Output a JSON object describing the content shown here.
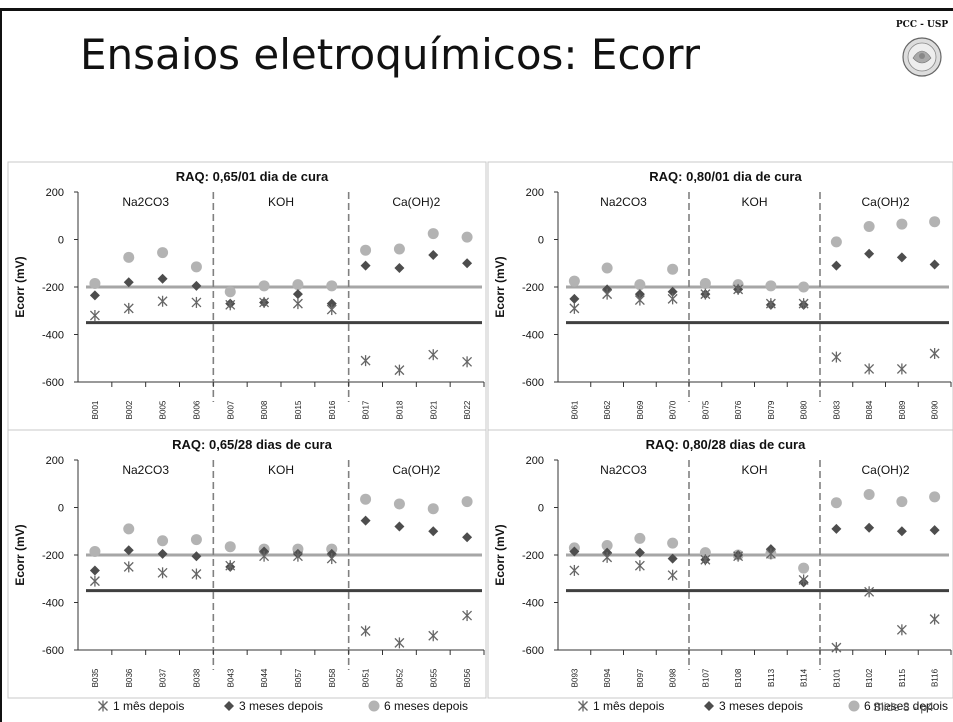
{
  "slide": {
    "title": "Ensaios eletroquímicos: Ecorr",
    "logo_text": "PCC - USP",
    "slide_number": "Slide 8 - p4"
  },
  "colors": {
    "series_1": "#555555",
    "series_2": "#555555",
    "series_3": "#b3b3b3",
    "line_minus200": "#a6a6a6",
    "line_minus350": "#404040",
    "divider": "#808080"
  },
  "chart_data": [
    {
      "type": "scatter",
      "title": "RAQ: 0,65/01 dia de cura",
      "ylabel": "Ecorr (mV)",
      "ylim": [
        -600,
        200
      ],
      "yticks": [
        200,
        0,
        -200,
        -400,
        -600
      ],
      "groups": [
        "Na2CO3",
        "KOH",
        "Ca(OH)2"
      ],
      "categories": [
        "B001",
        "B002",
        "B005",
        "B006",
        "B007",
        "B008",
        "B015",
        "B016",
        "B017",
        "B018",
        "B021",
        "B022"
      ],
      "reference_lines": [
        -200,
        -350
      ],
      "series": [
        {
          "name": "1 mês depois",
          "marker": "asterisk",
          "values": [
            -320,
            -290,
            -260,
            -265,
            -275,
            -265,
            -270,
            -295,
            -510,
            -550,
            -485,
            -515
          ]
        },
        {
          "name": "3 meses depois",
          "marker": "diamond",
          "values": [
            -235,
            -180,
            -165,
            -195,
            -270,
            -265,
            -230,
            -270,
            -110,
            -120,
            -65,
            -100
          ]
        },
        {
          "name": "6 meses depois",
          "marker": "circle",
          "values": [
            -185,
            -75,
            -55,
            -115,
            -220,
            -195,
            -190,
            -195,
            -45,
            -40,
            25,
            10
          ]
        }
      ]
    },
    {
      "type": "scatter",
      "title": "RAQ: 0,80/01 dia de cura",
      "ylabel": "Ecorr (mV)",
      "ylim": [
        -600,
        200
      ],
      "yticks": [
        200,
        0,
        -200,
        -400,
        -600
      ],
      "groups": [
        "Na2CO3",
        "KOH",
        "Ca(OH)2"
      ],
      "categories": [
        "B061",
        "B062",
        "B069",
        "B070",
        "B075",
        "B076",
        "B079",
        "B080",
        "B083",
        "B084",
        "B089",
        "B090"
      ],
      "reference_lines": [
        -200,
        -350
      ],
      "series": [
        {
          "name": "1 mês depois",
          "marker": "asterisk",
          "values": [
            -290,
            -230,
            -255,
            -250,
            -230,
            -210,
            -270,
            -270,
            -495,
            -545,
            -545,
            -480
          ]
        },
        {
          "name": "3 meses depois",
          "marker": "diamond",
          "values": [
            -250,
            -210,
            -230,
            -220,
            -230,
            -210,
            -275,
            -275,
            -110,
            -60,
            -75,
            -105
          ]
        },
        {
          "name": "6 meses depois",
          "marker": "circle",
          "values": [
            -175,
            -120,
            -190,
            -125,
            -185,
            -190,
            -195,
            -200,
            -10,
            55,
            65,
            75
          ]
        }
      ]
    },
    {
      "type": "scatter",
      "title": "RAQ: 0,65/28 dias de cura",
      "ylabel": "Ecorr (mV)",
      "ylim": [
        -600,
        200
      ],
      "yticks": [
        200,
        0,
        -200,
        -400,
        -600
      ],
      "groups": [
        "Na2CO3",
        "KOH",
        "Ca(OH)2"
      ],
      "categories": [
        "B035",
        "B036",
        "B037",
        "B038",
        "B043",
        "B044",
        "B057",
        "B058",
        "B051",
        "B052",
        "B055",
        "B056"
      ],
      "reference_lines": [
        -200,
        -350
      ],
      "series": [
        {
          "name": "1 mês depois",
          "marker": "asterisk",
          "values": [
            -310,
            -250,
            -275,
            -280,
            -245,
            -205,
            -205,
            -215,
            -520,
            -570,
            -540,
            -455
          ]
        },
        {
          "name": "3 meses depois",
          "marker": "diamond",
          "values": [
            -265,
            -180,
            -195,
            -205,
            -250,
            -185,
            -195,
            -195,
            -55,
            -80,
            -100,
            -125
          ]
        },
        {
          "name": "6 meses depois",
          "marker": "circle",
          "values": [
            -185,
            -90,
            -140,
            -135,
            -165,
            -175,
            -175,
            -175,
            35,
            15,
            -5,
            25
          ]
        }
      ]
    },
    {
      "type": "scatter",
      "title": "RAQ: 0,80/28 dias de cura",
      "ylabel": "Ecorr (mV)",
      "ylim": [
        -600,
        200
      ],
      "yticks": [
        200,
        0,
        -200,
        -400,
        -600
      ],
      "groups": [
        "Na2CO3",
        "KOH",
        "Ca(OH)2"
      ],
      "categories": [
        "B093",
        "B094",
        "B097",
        "B098",
        "B107",
        "B108",
        "B113",
        "B114",
        "B101",
        "B102",
        "B115",
        "B116"
      ],
      "reference_lines": [
        -200,
        -350
      ],
      "series": [
        {
          "name": "1 mês depois",
          "marker": "asterisk",
          "values": [
            -265,
            -210,
            -245,
            -285,
            -220,
            -205,
            -195,
            -305,
            -590,
            -355,
            -515,
            -470
          ]
        },
        {
          "name": "3 meses depois",
          "marker": "diamond",
          "values": [
            -185,
            -190,
            -190,
            -215,
            -220,
            -200,
            -175,
            -315,
            -90,
            -85,
            -100,
            -95
          ]
        },
        {
          "name": "6 meses depois",
          "marker": "circle",
          "values": [
            -170,
            -160,
            -130,
            -150,
            -190,
            -200,
            -195,
            -255,
            20,
            55,
            25,
            45
          ]
        }
      ]
    }
  ]
}
